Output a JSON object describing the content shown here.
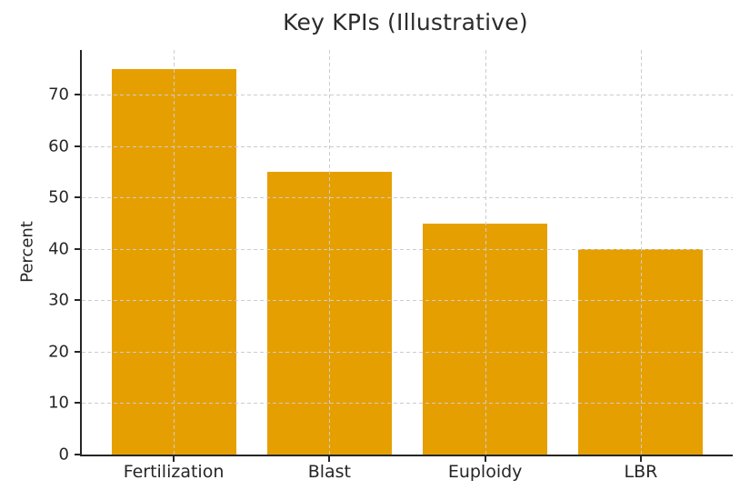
{
  "chart_data": {
    "type": "bar",
    "title": "Key KPIs (Illustrative)",
    "xlabel": "",
    "ylabel": "Percent",
    "categories": [
      "Fertilization",
      "Blast",
      "Euploidy",
      "LBR"
    ],
    "values": [
      75,
      55,
      45,
      40
    ],
    "yticks": [
      0,
      10,
      20,
      30,
      40,
      50,
      60,
      70
    ],
    "ylim": [
      0,
      78.75
    ],
    "bar_color": "#E69F00",
    "grid": true,
    "grid_style": "dashed",
    "grid_color": "#cccccc",
    "grid_above_bars": true,
    "axis_color": "#262626",
    "text_color": "#262626",
    "background_color": "#ffffff",
    "legend": "none"
  }
}
